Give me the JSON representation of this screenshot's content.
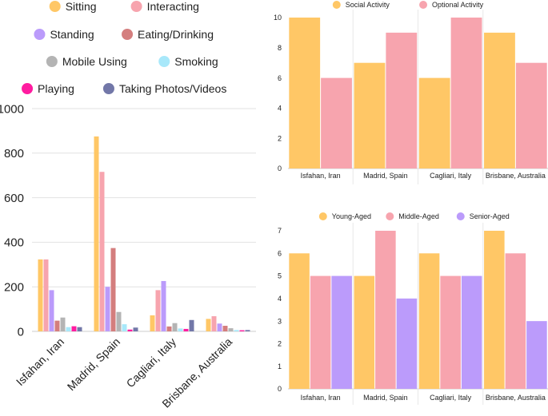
{
  "chart_data": [
    {
      "type": "bar",
      "title": "",
      "categories": [
        "Isfahan, Iran",
        "Madrid, Spain",
        "Cagliari, Italy",
        "Brisbane, Australia"
      ],
      "ylim": [
        0,
        1000
      ],
      "yticks": [
        0,
        200,
        400,
        600,
        800,
        1000
      ],
      "grid": true,
      "legend_position": "top",
      "series": [
        {
          "name": "Sitting",
          "color": "#FFC766",
          "values": [
            323,
            875,
            72,
            56
          ]
        },
        {
          "name": "Interacting",
          "color": "#F7A4AE",
          "values": [
            323,
            716,
            185,
            68
          ]
        },
        {
          "name": "Standing",
          "color": "#BB9BFB",
          "values": [
            185,
            200,
            226,
            35
          ]
        },
        {
          "name": "Eating/Drinking",
          "color": "#D47E7E",
          "values": [
            48,
            374,
            22,
            25
          ]
        },
        {
          "name": "Mobile Using",
          "color": "#B4B4B4",
          "values": [
            62,
            87,
            37,
            14
          ]
        },
        {
          "name": "Smoking",
          "color": "#A8E8FA",
          "values": [
            19,
            32,
            13,
            6
          ]
        },
        {
          "name": "Playing",
          "color": "#FF1CA0",
          "values": [
            23,
            8,
            11,
            5
          ]
        },
        {
          "name": "Taking Photos/Videos",
          "color": "#7277A8",
          "values": [
            19,
            17,
            51,
            6
          ]
        }
      ]
    },
    {
      "type": "bar",
      "title": "",
      "categories": [
        "Isfahan, Iran",
        "Madrid, Spain",
        "Cagliari, Italy",
        "Brisbane, Australia"
      ],
      "ylim": [
        0,
        10
      ],
      "yticks": [
        0,
        2,
        4,
        6,
        8,
        10
      ],
      "grid": false,
      "legend_position": "top",
      "series": [
        {
          "name": "Social Activity",
          "color": "#FFC766",
          "values": [
            10,
            7,
            6,
            9
          ]
        },
        {
          "name": "Optional Activity",
          "color": "#F7A4AE",
          "values": [
            6,
            9,
            10,
            7
          ]
        }
      ]
    },
    {
      "type": "bar",
      "title": "",
      "categories": [
        "Isfahan, Iran",
        "Madrid, Spain",
        "Cagliari, Italy",
        "Brisbane, Australia"
      ],
      "ylim": [
        0,
        7
      ],
      "yticks": [
        0,
        1,
        2,
        3,
        4,
        5,
        6,
        7
      ],
      "grid": false,
      "legend_position": "top",
      "series": [
        {
          "name": "Young-Aged",
          "color": "#FFC766",
          "values": [
            6,
            5,
            6,
            7
          ]
        },
        {
          "name": "Middle-Aged",
          "color": "#F7A4AE",
          "values": [
            5,
            7,
            5,
            6
          ]
        },
        {
          "name": "Senior-Aged",
          "color": "#BB9BFB",
          "values": [
            5,
            4,
            5,
            3
          ]
        }
      ]
    }
  ]
}
